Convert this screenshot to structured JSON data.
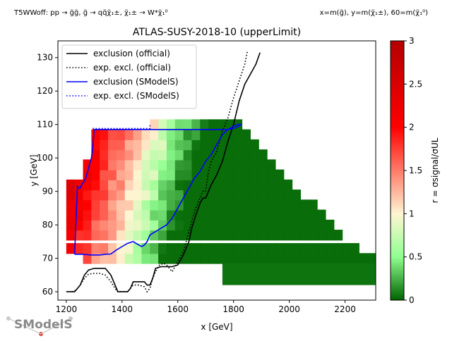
{
  "header": {
    "left": "T5WWoff: pp → g̃g̃, g̃ → qq̃χ̃₁±, χ̃₁± → W*χ̃₁⁰",
    "right": "x=m(g̃), y=m(χ̃₁±), 60=m(χ̃₁⁰)"
  },
  "chart_data": {
    "type": "heatmap",
    "title": "ATLAS-SUSY-2018-10 (upperLimit)",
    "xlabel": "x [GeV]",
    "ylabel": "y [GeV]",
    "colorbar_label": "r = σsignal/σUL",
    "xlim": [
      1170,
      2310
    ],
    "ylim": [
      57.5,
      135
    ],
    "x_ticks": [
      1200,
      1400,
      1600,
      1800,
      2000,
      2200
    ],
    "y_ticks": [
      60,
      70,
      80,
      90,
      100,
      110,
      120,
      130
    ],
    "colorbar_range": [
      0.0,
      3.0
    ],
    "colorbar_ticks": [
      0.0,
      0.5,
      1.0,
      1.5,
      2.0,
      2.5,
      3.0
    ],
    "colormap": [
      "#006400",
      "#90ff90",
      "#fff5d2",
      "#ff0000",
      "#b40000"
    ],
    "grid": false,
    "legend_position": "top-left",
    "legend": [
      {
        "label": "exclusion (official)",
        "color": "#000000",
        "style": "solid"
      },
      {
        "label": "exp. excl. (official)",
        "color": "#000000",
        "style": "dotted"
      },
      {
        "label": "exclusion (SModelS)",
        "color": "#0000ff",
        "style": "solid"
      },
      {
        "label": "exp. excl. (SModelS)",
        "color": "#0000ff",
        "style": "dotted"
      }
    ],
    "heatmap": {
      "x_bin_width": 30,
      "y_bin_height": 3.1,
      "description": "r-value grid; r decreases with increasing x and increasing mass splitting toward low y",
      "rows": [
        {
          "y": 70,
          "x_range": [
            1260,
            2300
          ]
        },
        {
          "y": 73,
          "x_range": [
            1200,
            2230
          ]
        },
        {
          "y": 77,
          "x_range": [
            1200,
            2170
          ]
        },
        {
          "y": 80,
          "x_range": [
            1200,
            2140
          ]
        },
        {
          "y": 83,
          "x_range": [
            1200,
            2110
          ]
        },
        {
          "y": 86,
          "x_range": [
            1200,
            2080
          ]
        },
        {
          "y": 89,
          "x_range": [
            1200,
            2040
          ]
        },
        {
          "y": 92,
          "x_range": [
            1200,
            2010
          ]
        },
        {
          "y": 95,
          "x_range": [
            1260,
            1980
          ]
        },
        {
          "y": 98,
          "x_range": [
            1260,
            1950
          ]
        },
        {
          "y": 101,
          "x_range": [
            1290,
            1920
          ]
        },
        {
          "y": 104,
          "x_range": [
            1290,
            1890
          ]
        },
        {
          "y": 107,
          "x_range": [
            1290,
            1860
          ]
        },
        {
          "y": 110,
          "x_range": [
            1500,
            1830
          ]
        }
      ],
      "extra_bins": [
        {
          "y_range": [
            62,
            68.5
          ],
          "x_range": [
            1760,
            2310
          ],
          "r": 0.05
        }
      ]
    },
    "series": [
      {
        "name": "exclusion (official)",
        "color": "#000000",
        "style": "solid",
        "x": [
          1200,
          1230,
          1250,
          1265,
          1280,
          1300,
          1320,
          1340,
          1360,
          1375,
          1385,
          1400,
          1420,
          1430,
          1440,
          1460,
          1480,
          1490,
          1500,
          1510,
          1520,
          1540,
          1560,
          1580,
          1600,
          1620,
          1640,
          1650,
          1665,
          1680,
          1690,
          1700,
          1720,
          1740,
          1760,
          1770,
          1780,
          1800,
          1820,
          1840,
          1860,
          1880,
          1895
        ],
        "y": [
          60,
          60,
          62,
          65,
          66.5,
          67,
          67,
          67,
          65,
          62,
          60,
          60,
          60,
          61,
          63,
          63,
          63,
          62,
          62,
          64,
          67,
          67.5,
          67.5,
          67.5,
          68,
          71,
          75,
          79,
          83,
          86.5,
          88,
          88,
          92,
          95,
          99,
          102,
          105,
          110,
          117,
          122,
          125,
          128,
          131.5
        ]
      },
      {
        "name": "exp. excl. (official)",
        "color": "#000000",
        "style": "dotted",
        "x": [
          1220,
          1235,
          1250,
          1265,
          1280,
          1300,
          1320,
          1340,
          1360,
          1375,
          1385,
          1400,
          1420,
          1440,
          1460,
          1480,
          1490,
          1500,
          1510,
          1520,
          1535,
          1550,
          1560,
          1580,
          1600,
          1620,
          1640,
          1660,
          1680,
          1690,
          1700,
          1710,
          1720,
          1740,
          1760,
          1780,
          1800,
          1820,
          1840,
          1850
        ],
        "y": [
          60,
          60.5,
          62,
          64,
          65.3,
          65.5,
          65.5,
          65,
          63,
          61,
          60,
          60,
          60,
          62,
          62,
          61.5,
          60,
          61,
          64,
          66,
          68,
          68.5,
          68,
          66,
          69,
          72,
          78,
          84,
          88,
          90,
          90,
          96,
          99,
          102,
          108,
          112,
          118,
          123,
          128,
          132
        ]
      },
      {
        "name": "exclusion (SModelS)",
        "color": "#0000ff",
        "style": "solid",
        "x": [
          1230,
          1260,
          1290,
          1320,
          1340,
          1360,
          1380,
          1400,
          1420,
          1440,
          1450,
          1460,
          1470,
          1480,
          1490,
          1500,
          1520,
          1540,
          1560,
          1580,
          1600,
          1620,
          1640,
          1660,
          1680,
          1700,
          1720,
          1740,
          1760,
          1780,
          1800,
          1815,
          1825,
          1820,
          1800,
          1780,
          1760,
          1740,
          1720,
          1700,
          1680,
          1660,
          1640,
          1620,
          1600,
          1580,
          1560,
          1540,
          1520,
          1500,
          1500,
          1470,
          1440,
          1410,
          1380,
          1350,
          1320,
          1300,
          1295,
          1290,
          1280,
          1270,
          1260,
          1255,
          1250,
          1245,
          1240,
          1230
        ],
        "y": [
          71.2,
          71.2,
          71,
          71,
          71.2,
          71.3,
          72.5,
          73.5,
          74.5,
          75,
          74.5,
          74,
          73.5,
          74,
          75,
          77,
          78,
          79,
          80,
          82,
          85,
          88,
          91,
          94,
          96,
          99,
          101,
          104,
          107,
          108.5,
          109.5,
          110,
          110,
          109.5,
          108.8,
          108.5,
          108.5,
          108.5,
          108.5,
          108.5,
          108.5,
          108.5,
          108.5,
          108.5,
          108.5,
          108.5,
          108.5,
          108.5,
          108.5,
          108.5,
          108.5,
          108.5,
          108.5,
          108.5,
          108.5,
          108.5,
          108.5,
          108.5,
          103,
          100,
          97,
          94,
          92.5,
          92,
          91,
          91,
          91.5,
          71.2
        ]
      },
      {
        "name": "exp. excl. (SModelS)",
        "color": "#0000ff",
        "style": "dotted",
        "x": [
          1295,
          1300,
          1320,
          1350,
          1380,
          1410,
          1440,
          1470,
          1500,
          1500
        ],
        "y": [
          108.8,
          108.8,
          108.8,
          108.8,
          108.8,
          108.8,
          108.8,
          108.8,
          108.8,
          110
        ]
      }
    ]
  },
  "logo": {
    "text": "SModelS"
  }
}
